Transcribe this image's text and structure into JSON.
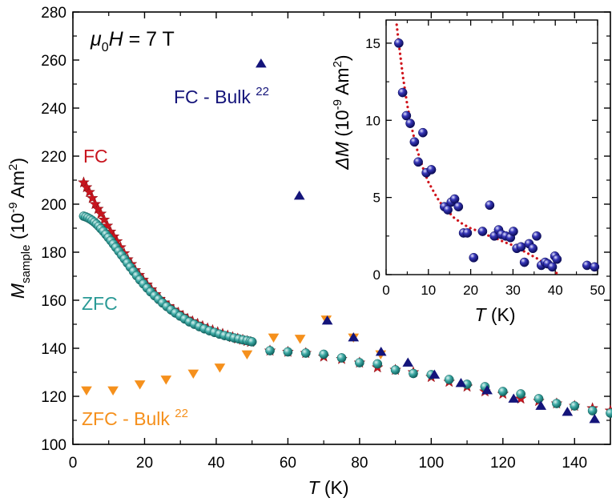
{
  "chart_data": [
    {
      "type": "scatter",
      "xlabel": {
        "sym": "T",
        "unit": " (K)"
      },
      "ylabel": {
        "sym": "M",
        "sub": "sample",
        "unit": " (10",
        "exp": "-9",
        "unit2": " Am",
        "exp2": "2",
        "close": ")"
      },
      "xlim": [
        0,
        150
      ],
      "ylim": [
        100,
        280
      ],
      "xticks": [
        "0",
        "20",
        "40",
        "60",
        "80",
        "100",
        "120",
        "140"
      ],
      "yticks": [
        "100",
        "120",
        "140",
        "160",
        "180",
        "200",
        "220",
        "240",
        "260",
        "280"
      ],
      "field_label": {
        "mu": "μ",
        "sub": "0",
        "H": "H",
        "rest": " = 7 T"
      },
      "annotations": {
        "fc": "FC",
        "zfc": "ZFC",
        "fc_bulk": "FC - Bulk ",
        "fc_bulk_ref": "22",
        "zfc_bulk": "ZFC - Bulk ",
        "zfc_bulk_ref": "22"
      },
      "colors": {
        "fc": "#c8141e",
        "zfc": "#2a9a96",
        "fc_bulk": "#14147a",
        "zfc_bulk": "#f5901c"
      },
      "series": [
        {
          "name": "ZFC",
          "marker": "sphere",
          "x": [
            3.0,
            3.6,
            4.2,
            4.8,
            5.4,
            6.0,
            6.6,
            7.2,
            7.8,
            8.5,
            9.2,
            9.9,
            10.6,
            11.3,
            12.0,
            12.8,
            13.6,
            14.4,
            15.2,
            16.0,
            16.9,
            17.8,
            18.7,
            19.7,
            20.7,
            21.7,
            22.8,
            23.9,
            25.0,
            26.2,
            27.4,
            28.6,
            29.9,
            31.2,
            32.5,
            33.9,
            35.3,
            36.7,
            38.1,
            39.5,
            40.9,
            42.3,
            43.7,
            45.0,
            46.3,
            47.5,
            48.6,
            49.5,
            50.0,
            55,
            60,
            65,
            70,
            75,
            80,
            85,
            90,
            95,
            100,
            105,
            110,
            115,
            120,
            125,
            130,
            135,
            140,
            145,
            150
          ],
          "y": [
            195,
            194.7,
            194.3,
            193.8,
            193.2,
            192.5,
            191.7,
            190.8,
            189.8,
            188.7,
            187.4,
            186.1,
            184.8,
            183.4,
            182.0,
            180.4,
            178.8,
            177.2,
            175.5,
            173.8,
            172.0,
            170.2,
            168.5,
            166.8,
            165.1,
            163.5,
            161.9,
            160.4,
            158.9,
            157.4,
            156.0,
            154.7,
            153.4,
            152.2,
            151.0,
            150.0,
            149.0,
            148.1,
            147.3,
            146.6,
            145.9,
            145.3,
            144.8,
            144.3,
            143.9,
            143.5,
            143.2,
            142.9,
            142.7,
            139,
            138.5,
            138,
            137.5,
            136,
            134,
            133.5,
            131,
            129.5,
            129,
            127,
            125,
            124,
            122,
            121,
            119,
            117,
            116,
            114,
            113
          ]
        },
        {
          "name": "FC",
          "marker": "star",
          "x": [
            3.0,
            3.8,
            4.6,
            5.4,
            6.2,
            7.0,
            7.8,
            8.7,
            9.6,
            10.5,
            11.4,
            12.3,
            13.3,
            14.3,
            15.3,
            16.3,
            17.4,
            18.5,
            19.6,
            20.7,
            21.9,
            23.1,
            24.3,
            25.5,
            26.8,
            28.1,
            29.4,
            30.7,
            32.0,
            33.4,
            34.8,
            36.2,
            37.6,
            39.0,
            40.4,
            41.8,
            43.2,
            44.6,
            46.0,
            47.4,
            48.6,
            49.6,
            55,
            60,
            65,
            70,
            75,
            80,
            85,
            90,
            95,
            100,
            105,
            110,
            115,
            120,
            125,
            130,
            135,
            140,
            145,
            150
          ],
          "y": [
            209,
            207,
            205,
            202.5,
            200,
            198,
            196,
            193.5,
            191,
            188.5,
            186.5,
            184.5,
            182,
            179.5,
            177,
            175,
            172.5,
            170.5,
            168.5,
            166.5,
            164.5,
            162.5,
            160.5,
            159,
            157.5,
            156,
            154.8,
            153.5,
            152.3,
            151.2,
            150.2,
            149.2,
            148.3,
            147.5,
            146.7,
            146,
            145.3,
            144.6,
            144,
            143.5,
            143,
            142.6,
            139,
            138.5,
            138,
            136.5,
            135.5,
            134,
            132,
            131,
            130,
            128,
            126,
            124,
            122,
            121,
            119,
            118,
            117,
            116,
            115,
            114
          ]
        },
        {
          "name": "FC - Bulk 22",
          "marker": "triangle-up",
          "x": [
            52.5,
            63.2,
            71.0,
            78.3,
            86.0,
            93.5,
            100.9,
            108.3,
            115.6,
            123.0,
            130.6,
            138.0,
            145.6
          ],
          "y": [
            258.5,
            203.5,
            151.5,
            144.5,
            138.5,
            134,
            129,
            125.5,
            122.5,
            119,
            116,
            113.5,
            110.5
          ]
        },
        {
          "name": "ZFC - Bulk 22",
          "marker": "triangle-down",
          "x": [
            3.8,
            11.2,
            18.7,
            26.0,
            33.6,
            41.0,
            48.6,
            56.0,
            63.4,
            70.7,
            78.3,
            85.9
          ],
          "y": [
            122.5,
            122.5,
            125,
            127,
            129.5,
            132,
            137.5,
            144.5,
            144,
            152,
            144.5,
            137.5
          ]
        }
      ]
    },
    {
      "type": "scatter",
      "xlabel": {
        "sym": "T",
        "unit": " (K)"
      },
      "ylabel": {
        "sym": "ΔM",
        "unit": "  (10",
        "exp": "-9",
        "unit2": " Am",
        "exp2": "2",
        "close": ")"
      },
      "xlim": [
        0,
        50
      ],
      "ylim": [
        0,
        16.5
      ],
      "xticks": [
        "0",
        "10",
        "20",
        "30",
        "40",
        "50"
      ],
      "yticks": [
        "0",
        "5",
        "10",
        "15"
      ],
      "colors": {
        "points": "#1b1b8a",
        "fit": "#d0141c"
      },
      "series": [
        {
          "name": "ΔM",
          "marker": "sphere",
          "x": [
            3.0,
            3.9,
            4.8,
            5.7,
            6.7,
            7.6,
            8.7,
            9.5,
            10.7,
            13.8,
            14.6,
            15.4,
            16.2,
            17.1,
            18.3,
            19.2,
            20.7,
            22.8,
            24.5,
            25.6,
            26.6,
            27.3,
            28.3,
            29.4,
            30.1,
            30.9,
            31.9,
            32.7,
            33.8,
            34.7,
            35.6,
            36.7,
            37.6,
            38.2,
            39.3,
            39.9,
            40.4,
            47.5,
            49.3
          ],
          "y": [
            15.0,
            11.8,
            10.3,
            9.8,
            8.6,
            7.3,
            9.2,
            6.6,
            6.8,
            4.4,
            4.2,
            4.7,
            4.9,
            4.4,
            2.7,
            2.7,
            1.1,
            2.8,
            4.5,
            2.5,
            2.9,
            2.6,
            2.5,
            2.4,
            2.8,
            1.7,
            1.8,
            0.8,
            2.0,
            1.7,
            2.5,
            0.6,
            0.8,
            0.7,
            0.5,
            1.2,
            1.0,
            0.6,
            0.5
          ]
        },
        {
          "name": "fit",
          "marker": "dotted-line",
          "x": [
            2.5,
            3,
            4,
            5,
            6,
            7,
            8,
            9,
            10,
            11,
            12,
            13,
            14,
            15,
            16,
            18,
            20,
            22,
            24,
            26,
            28,
            30,
            32,
            34,
            36,
            38,
            40,
            41
          ],
          "y": [
            16.2,
            15.0,
            12.8,
            11.0,
            9.6,
            8.4,
            7.5,
            6.7,
            6.0,
            5.5,
            5.0,
            4.6,
            4.3,
            4.0,
            3.7,
            3.3,
            3.0,
            2.8,
            2.55,
            2.35,
            2.1,
            1.9,
            1.6,
            1.3,
            1.0,
            0.6,
            0.15,
            0.0
          ]
        }
      ]
    }
  ]
}
